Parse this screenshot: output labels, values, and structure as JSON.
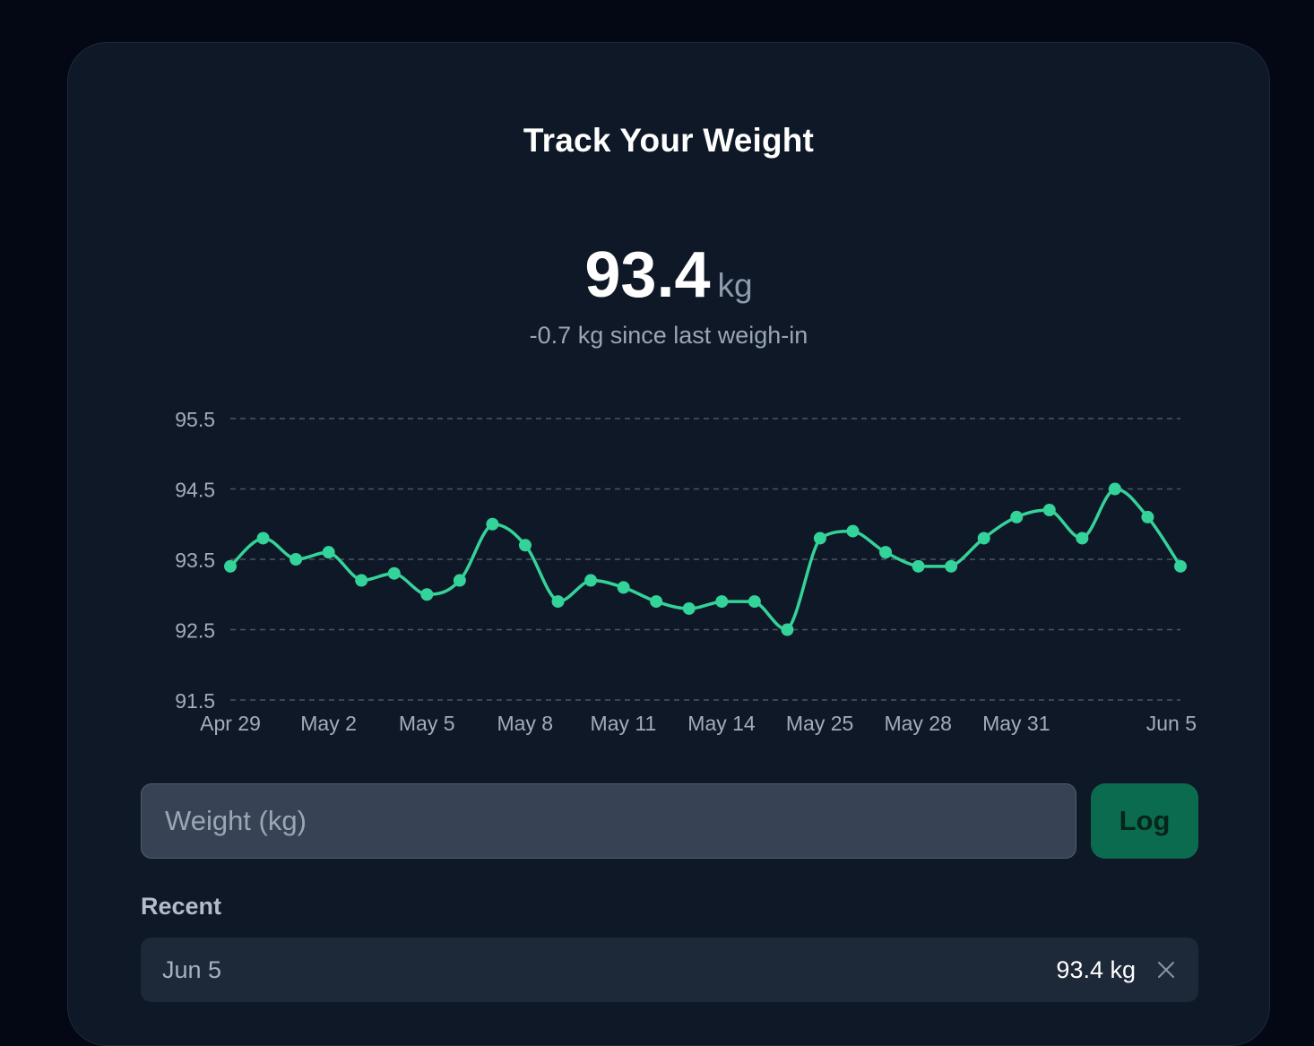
{
  "header": {
    "title": "Track Your Weight"
  },
  "current": {
    "value": "93.4",
    "unit": "kg",
    "delta": "-0.7 kg since last weigh-in"
  },
  "colors": {
    "line": "#34d399",
    "grid": "#4b5563",
    "tick": "#a3adba",
    "button": "#0b6b4f"
  },
  "chart_data": {
    "type": "line",
    "title": "",
    "xlabel": "",
    "ylabel": "",
    "ylim": [
      91.5,
      95.5
    ],
    "yticks": [
      "95.5",
      "94.5",
      "93.5",
      "92.5",
      "91.5"
    ],
    "grid": true,
    "xtick_labels": [
      "Apr 29",
      "May 2",
      "May 5",
      "May 8",
      "May 11",
      "May 14",
      "May 25",
      "May 28",
      "May 31",
      "Jun 5"
    ],
    "series": [
      {
        "values": [
          93.4,
          93.8,
          93.5,
          93.6,
          93.2,
          93.3,
          93.0,
          93.2,
          94.0,
          93.7,
          92.9,
          93.2,
          93.1,
          92.9,
          92.8,
          92.9,
          92.9,
          92.5,
          93.8,
          93.9,
          93.6,
          93.4,
          93.4,
          93.8,
          94.1,
          94.2,
          93.8,
          94.5,
          94.1,
          93.4
        ]
      }
    ]
  },
  "form": {
    "placeholder": "Weight (kg)",
    "log_label": "Log"
  },
  "recent": {
    "label": "Recent",
    "entries": [
      {
        "date": "Jun 5",
        "value": "93.4 kg"
      }
    ]
  }
}
